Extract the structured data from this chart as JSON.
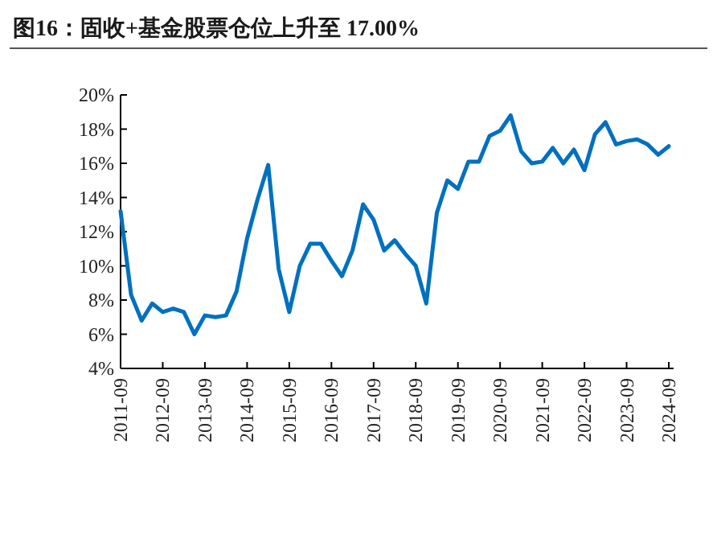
{
  "chart_data": {
    "type": "line",
    "title": "图16：固收+基金股票仓位上升至 17.00%",
    "categories": [
      "2011-09",
      null,
      null,
      null,
      "2012-09",
      null,
      null,
      null,
      "2013-09",
      null,
      null,
      null,
      "2014-09",
      null,
      null,
      null,
      "2015-09",
      null,
      null,
      null,
      "2016-09",
      null,
      null,
      null,
      "2017-09",
      null,
      null,
      null,
      "2018-09",
      null,
      null,
      null,
      "2019-09",
      null,
      null,
      null,
      "2020-09",
      null,
      null,
      null,
      "2021-09",
      null,
      null,
      null,
      "2022-09",
      null,
      null,
      null,
      "2023-09",
      null,
      null,
      null,
      "2024-09"
    ],
    "series": [
      {
        "color": "#0070c0",
        "values": [
          13.2,
          8.3,
          6.8,
          7.8,
          7.3,
          7.5,
          7.3,
          6.0,
          7.1,
          7.0,
          7.1,
          8.5,
          11.6,
          13.9,
          15.9,
          9.8,
          7.3,
          10.0,
          11.3,
          11.3,
          10.3,
          9.4,
          10.9,
          13.6,
          12.7,
          10.9,
          11.5,
          10.7,
          10.0,
          7.8,
          13.1,
          15.0,
          14.5,
          16.1,
          16.1,
          17.6,
          17.9,
          18.8,
          16.7,
          16.0,
          16.1,
          16.9,
          16.0,
          16.8,
          15.6,
          17.7,
          18.4,
          17.1,
          17.3,
          17.4,
          17.1,
          16.5,
          17.0
        ]
      }
    ],
    "ylim": [
      4,
      20
    ],
    "yticks": [
      {
        "value": 4,
        "label": "4%"
      },
      {
        "value": 6,
        "label": "6%"
      },
      {
        "value": 8,
        "label": "8%"
      },
      {
        "value": 10,
        "label": "10%"
      },
      {
        "value": 12,
        "label": "12%"
      },
      {
        "value": 14,
        "label": "14%"
      },
      {
        "value": 16,
        "label": "16%"
      },
      {
        "value": 18,
        "label": "18%"
      },
      {
        "value": 20,
        "label": "20%"
      }
    ],
    "grid": false
  }
}
